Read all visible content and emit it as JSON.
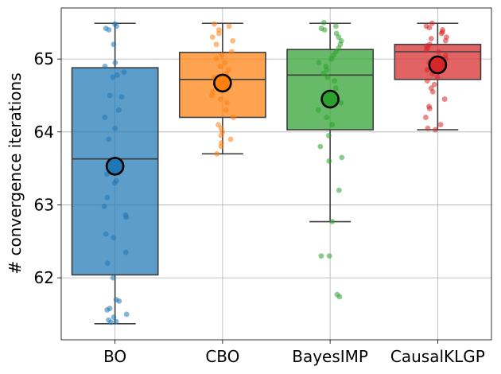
{
  "chart_data": {
    "type": "box",
    "title": "",
    "xlabel": "",
    "ylabel": "# convergence iterations",
    "ylim": [
      61.15,
      65.7
    ],
    "yticks": [
      62,
      63,
      64,
      65
    ],
    "grid": true,
    "categories": [
      "BO",
      "CBO",
      "BayesIMP",
      "CausalKLGP"
    ],
    "colors": [
      "#1f77b4",
      "#ff7f0e",
      "#2ca02c",
      "#d62728"
    ],
    "boxes": [
      {
        "category": "BO",
        "whisker_low": 61.37,
        "q1": 62.04,
        "median": 63.63,
        "q3": 64.88,
        "whisker_high": 65.49,
        "mean": 63.53
      },
      {
        "category": "CBO",
        "whisker_low": 63.7,
        "q1": 64.2,
        "median": 64.72,
        "q3": 65.09,
        "whisker_high": 65.49,
        "mean": 64.67
      },
      {
        "category": "BayesIMP",
        "whisker_low": 62.77,
        "q1": 64.03,
        "median": 64.78,
        "q3": 65.13,
        "whisker_high": 65.49,
        "mean": 64.45
      },
      {
        "category": "CausalKLGP",
        "whisker_low": 64.03,
        "q1": 64.72,
        "median": 65.1,
        "q3": 65.2,
        "whisker_high": 65.49,
        "mean": 64.92
      }
    ],
    "points": [
      [
        65.48,
        65.45,
        65.42,
        65.4,
        65.2,
        64.95,
        64.9,
        64.82,
        64.78,
        64.75,
        64.5,
        64.48,
        64.3,
        64.2,
        64.05,
        63.9,
        63.6,
        63.42,
        63.33,
        63.3,
        63.1,
        62.98,
        62.86,
        62.83,
        62.6,
        62.55,
        62.35,
        62.2,
        62.0,
        61.7,
        61.68,
        61.58,
        61.56,
        61.5,
        61.46,
        61.42,
        61.4,
        61.39
      ],
      [
        65.48,
        65.45,
        65.4,
        65.35,
        65.3,
        65.25,
        65.2,
        65.1,
        65.05,
        65.0,
        64.95,
        64.9,
        64.85,
        64.8,
        64.75,
        64.7,
        64.6,
        64.55,
        64.5,
        64.45,
        64.4,
        64.3,
        64.2,
        64.1,
        64.05,
        64.0,
        63.95,
        63.9,
        63.85,
        63.8,
        63.7
      ],
      [
        65.5,
        65.45,
        65.42,
        65.4,
        65.35,
        65.3,
        65.25,
        65.2,
        65.15,
        65.1,
        65.05,
        65.0,
        64.95,
        64.9,
        64.85,
        64.8,
        64.75,
        64.7,
        64.6,
        64.5,
        64.4,
        64.3,
        64.2,
        64.1,
        63.95,
        63.8,
        63.65,
        63.6,
        63.2,
        62.77,
        62.3,
        62.3,
        61.77,
        61.74
      ],
      [
        65.49,
        65.45,
        65.43,
        65.4,
        65.37,
        65.35,
        65.3,
        65.28,
        65.25,
        65.2,
        65.18,
        65.15,
        65.12,
        65.1,
        65.05,
        65.0,
        64.95,
        64.9,
        64.85,
        64.8,
        64.75,
        64.7,
        64.65,
        64.6,
        64.55,
        64.45,
        64.35,
        64.32,
        64.2,
        64.1,
        64.05,
        64.03
      ]
    ]
  }
}
